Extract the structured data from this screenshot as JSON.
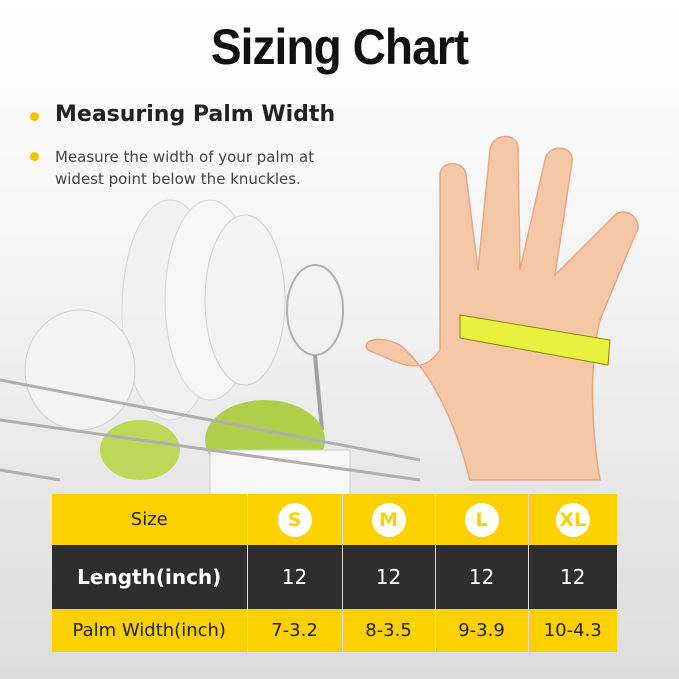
{
  "title": "Sizing Chart",
  "heading": "Measuring Palm Width",
  "description": "Measure the width of your palm at widest point below the knuckles.",
  "colors": {
    "accent": "#fdd000",
    "dark_row": "#1e1e1e"
  },
  "table": {
    "header": {
      "label": "Size",
      "sizes": [
        "S",
        "M",
        "L",
        "XL"
      ]
    },
    "rows": [
      {
        "label": "Length(inch)",
        "values": [
          "12",
          "12",
          "12",
          "12"
        ]
      },
      {
        "label": "Palm Width(inch)",
        "values": [
          "7-3.2",
          "8-3.5",
          "9-3.9",
          "10-4.3"
        ]
      }
    ]
  }
}
